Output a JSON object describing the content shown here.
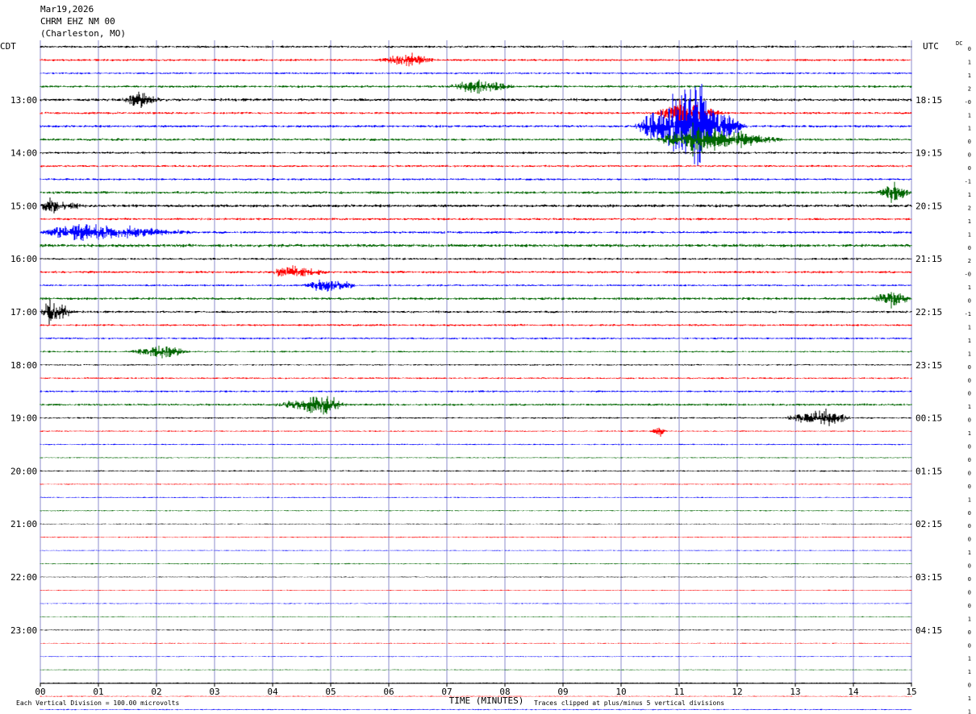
{
  "header": {
    "date": "Mar19,2026",
    "station": "CHRM EHZ NM 00",
    "location": "(Charleston, MO)"
  },
  "footer": {
    "scale_note": "Each Vertical Division =  100.00 microvolts",
    "clip_note": "Traces clipped at plus/minus 5 vertical divisions"
  },
  "chart_data": {
    "type": "line",
    "subtype": "helicorder",
    "xlabel": "TIME (MINUTES)",
    "x_ticks": [
      "00",
      "01",
      "02",
      "03",
      "04",
      "05",
      "06",
      "07",
      "08",
      "09",
      "10",
      "11",
      "12",
      "13",
      "14",
      "15"
    ],
    "xlim": [
      0,
      15
    ],
    "left_axis_label": "CDT",
    "right_axis_label": "UTC",
    "dc_label": "DC",
    "traces_per_hour": 4,
    "trace_colors": [
      "#000000",
      "#ff0000",
      "#0000ff",
      "#006600"
    ],
    "gridline_color": "#7070c0",
    "start_offset_traces": 3,
    "left_hour_labels": [
      "13:00",
      "14:00",
      "15:00",
      "16:00",
      "17:00",
      "18:00",
      "19:00",
      "20:00",
      "21:00",
      "22:00",
      "23:00"
    ],
    "right_hour_labels": [
      "18:15",
      "19:15",
      "20:15",
      "21:15",
      "22:15",
      "23:15",
      "00:15",
      "01:15",
      "02:15",
      "03:15",
      "04:15"
    ],
    "dc_offsets": [
      "0",
      "1",
      "1",
      "2",
      "-0",
      "1",
      "1",
      "0",
      "0",
      "0",
      "-1",
      "1",
      "2",
      "1",
      "1",
      "0",
      "2",
      "-0",
      "1",
      "0",
      "-1",
      "1",
      "1",
      "1",
      "0",
      "0",
      "0",
      "1",
      "0",
      "1",
      "0",
      "0",
      "0",
      "0",
      "1",
      "0",
      "0",
      "0",
      "1",
      "0",
      "0",
      "0",
      "0",
      "1",
      "0",
      "0",
      "1",
      "1",
      "0",
      "1",
      "1"
    ],
    "noise_levels": [
      1.2,
      1.2,
      1.0,
      1.3,
      1.5,
      1.2,
      1.3,
      1.3,
      1.2,
      1.1,
      1.1,
      1.4,
      1.6,
      1.2,
      1.3,
      1.7,
      1.1,
      1.3,
      1.0,
      1.4,
      1.2,
      1.1,
      1.0,
      0.9,
      0.8,
      0.9,
      1.0,
      1.2,
      0.9,
      0.7,
      0.7,
      0.6,
      0.8,
      0.6,
      0.6,
      0.6,
      0.5,
      0.6,
      0.5,
      0.6,
      0.5,
      0.5,
      0.5,
      0.5,
      0.6,
      0.5,
      0.5,
      0.5,
      0.6,
      0.5,
      0.6
    ],
    "events": [
      {
        "trace": 6,
        "start_min": 10.2,
        "end_min": 12.2,
        "peak_min": 11.05,
        "amplitude": 5,
        "clipped": true,
        "label": ""
      },
      {
        "trace": 6,
        "start_min": 11.2,
        "end_min": 11.6,
        "peak_min": 11.35,
        "amplitude": 5,
        "clipped": true,
        "label": ""
      },
      {
        "trace": 5,
        "start_min": 10.6,
        "end_min": 11.8,
        "peak_min": 11.0,
        "amplitude": 2,
        "clipped": false,
        "label": ""
      },
      {
        "trace": 7,
        "start_min": 10.6,
        "end_min": 12.8,
        "peak_min": 11.2,
        "amplitude": 2,
        "clipped": false,
        "label": ""
      },
      {
        "trace": 11,
        "start_min": 14.4,
        "end_min": 15.0,
        "peak_min": 14.7,
        "amplitude": 1.5,
        "clipped": false,
        "label": ""
      },
      {
        "trace": 19,
        "start_min": 14.3,
        "end_min": 15.0,
        "peak_min": 14.7,
        "amplitude": 1.2,
        "clipped": false,
        "label": ""
      },
      {
        "trace": 20,
        "start_min": 0.0,
        "end_min": 0.6,
        "peak_min": 0.15,
        "amplitude": 1.8,
        "clipped": false,
        "label": ""
      },
      {
        "trace": 27,
        "start_min": 4.0,
        "end_min": 5.3,
        "peak_min": 4.9,
        "amplitude": 1.3,
        "clipped": false,
        "label": ""
      },
      {
        "trace": 28,
        "start_min": 12.8,
        "end_min": 14.0,
        "peak_min": 13.5,
        "amplitude": 1.3,
        "clipped": false,
        "label": ""
      },
      {
        "trace": 14,
        "start_min": 0.0,
        "end_min": 2.7,
        "peak_min": 0.5,
        "amplitude": 1.2,
        "clipped": false,
        "label": ""
      },
      {
        "trace": 3,
        "start_min": 7.0,
        "end_min": 8.2,
        "peak_min": 7.5,
        "amplitude": 1.0,
        "clipped": false,
        "label": ""
      },
      {
        "trace": 4,
        "start_min": 1.4,
        "end_min": 2.1,
        "peak_min": 1.7,
        "amplitude": 1.0,
        "clipped": false,
        "label": ""
      },
      {
        "trace": 18,
        "start_min": 4.5,
        "end_min": 5.5,
        "peak_min": 4.9,
        "amplitude": 1.0,
        "clipped": false,
        "label": ""
      },
      {
        "trace": 17,
        "start_min": 4.0,
        "end_min": 5.0,
        "peak_min": 4.2,
        "amplitude": 0.9,
        "clipped": false,
        "label": ""
      },
      {
        "trace": 23,
        "start_min": 1.5,
        "end_min": 2.6,
        "peak_min": 2.1,
        "amplitude": 0.9,
        "clipped": false,
        "label": ""
      },
      {
        "trace": 29,
        "start_min": 10.5,
        "end_min": 10.8,
        "peak_min": 10.65,
        "amplitude": 0.8,
        "clipped": false,
        "label": ""
      },
      {
        "trace": 1,
        "start_min": 5.8,
        "end_min": 6.8,
        "peak_min": 6.4,
        "amplitude": 0.9,
        "clipped": false,
        "label": ""
      },
      {
        "trace": 12,
        "start_min": 0.0,
        "end_min": 0.8,
        "peak_min": 0.1,
        "amplitude": 0.9,
        "clipped": false,
        "label": ""
      }
    ]
  }
}
